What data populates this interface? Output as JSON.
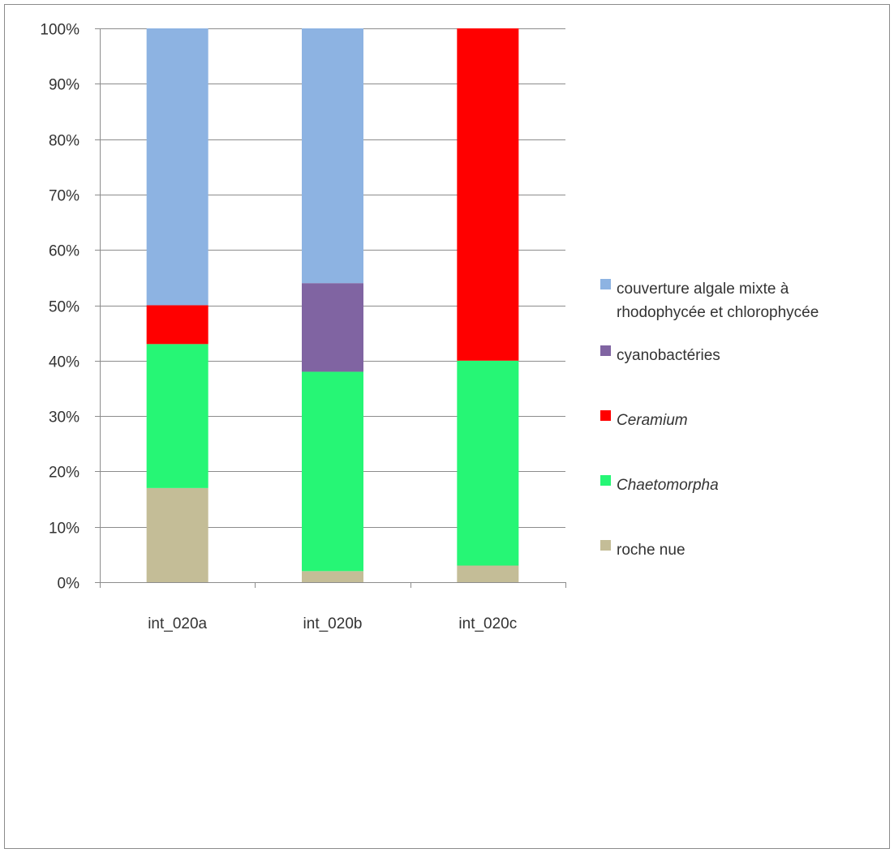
{
  "chart_data": {
    "type": "bar",
    "stacked": true,
    "percent": true,
    "title": "",
    "xlabel": "",
    "ylabel": "",
    "categories": [
      "int_020a",
      "int_020b",
      "int_020c"
    ],
    "ylim": [
      0,
      100
    ],
    "yticks": [
      0,
      10,
      20,
      30,
      40,
      50,
      60,
      70,
      80,
      90,
      100
    ],
    "ytick_labels": [
      "0%",
      "10%",
      "20%",
      "30%",
      "40%",
      "50%",
      "60%",
      "70%",
      "80%",
      "90%",
      "100%"
    ],
    "grid": true,
    "legend_position": "right",
    "series": [
      {
        "name": "roche nue",
        "values": [
          17,
          2,
          3
        ],
        "color": "#c4bd97",
        "italic": false
      },
      {
        "name": "Chaetomorpha",
        "values": [
          26,
          36,
          37
        ],
        "color": "#26f675",
        "italic": true
      },
      {
        "name": "Ceramium",
        "values": [
          7,
          0,
          60
        ],
        "color": "#ff0000",
        "italic": true
      },
      {
        "name": "cyanobactéries",
        "values": [
          0,
          16,
          0
        ],
        "color": "#8064a2",
        "italic": false
      },
      {
        "name": "couverture algale mixte à rhodophycée et chlorophycée",
        "values": [
          50,
          46,
          0
        ],
        "color": "#8db3e2",
        "italic": false
      }
    ],
    "legend_lines": {
      "couverture algale mixte à rhodophycée et chlorophycée": [
        "couverture algale mixte à",
        "rhodophycée et chlorophycée"
      ]
    }
  }
}
